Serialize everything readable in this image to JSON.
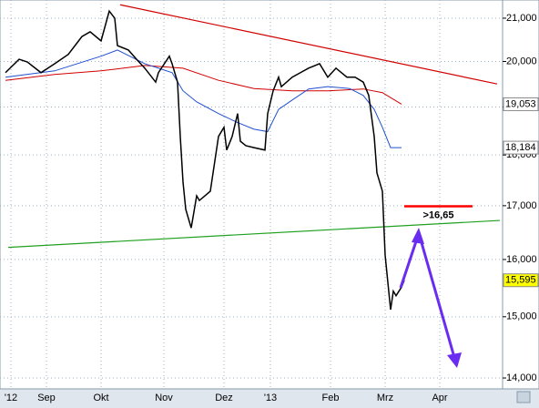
{
  "chart_data": {
    "type": "line",
    "log_scale": true,
    "grid": true,
    "xlim": [
      0,
      184
    ],
    "ylim": [
      13815,
      21435
    ],
    "xticks": [
      {
        "value": 4,
        "label": "'12"
      },
      {
        "value": 17,
        "label": "Sep"
      },
      {
        "value": 37,
        "label": "Okt"
      },
      {
        "value": 60,
        "label": "Nov"
      },
      {
        "value": 82,
        "label": "Dez"
      },
      {
        "value": 99,
        "label": "'13"
      },
      {
        "value": 121,
        "label": "Feb"
      },
      {
        "value": 141,
        "label": "Mrz"
      },
      {
        "value": 161,
        "label": "Apr"
      }
    ],
    "yticks": [
      {
        "value": 14000,
        "label": "14,000"
      },
      {
        "value": 15000,
        "label": "15,000"
      },
      {
        "value": 16000,
        "label": "16,000"
      },
      {
        "value": 17000,
        "label": "17,000"
      },
      {
        "value": 18000,
        "label": "18,000"
      },
      {
        "value": 19000,
        "label": "19,000"
      },
      {
        "value": 20000,
        "label": "20,000"
      },
      {
        "value": 21000,
        "label": "21,000"
      }
    ],
    "series": [
      {
        "color": "#d00000",
        "end_label": "19,053",
        "label_bg": "#ffffff",
        "x": [
          2,
          20,
          37,
          53,
          67,
          80,
          93,
          107,
          120,
          133,
          140,
          147
        ],
        "values": [
          19580,
          19710,
          19790,
          19910,
          19850,
          19580,
          19400,
          19350,
          19350,
          19390,
          19310,
          19060
        ]
      },
      {
        "color": "#2050d0",
        "end_label": "18,184",
        "label_bg": "#ffffff",
        "x": [
          2,
          20,
          37,
          43,
          53,
          63,
          67,
          72,
          80,
          87,
          93,
          98,
          102,
          107,
          113,
          120,
          128,
          133,
          137,
          140,
          143,
          147
        ],
        "values": [
          19650,
          19790,
          20120,
          20260,
          19950,
          19750,
          19350,
          19110,
          18860,
          18670,
          18530,
          18480,
          18950,
          19150,
          19390,
          19440,
          19400,
          19250,
          18950,
          18570,
          18150,
          18150
        ]
      },
      {
        "color": "#000000",
        "end_label": "15,595",
        "label_bg": "#ffff00",
        "x": [
          2,
          7,
          10,
          15,
          20,
          25,
          30,
          33,
          37,
          40,
          42,
          43,
          47,
          50,
          53,
          57,
          58,
          62,
          63,
          65,
          66,
          67,
          68,
          70,
          72,
          73,
          77,
          80,
          82,
          83,
          85,
          87,
          88,
          90,
          93,
          97,
          98,
          100,
          102,
          103,
          107,
          110,
          113,
          117,
          120,
          123,
          127,
          130,
          133,
          135,
          137,
          138,
          140,
          141,
          142,
          143,
          144,
          145,
          147,
          148
        ],
        "values": [
          19750,
          20050,
          19990,
          19750,
          19950,
          20160,
          20570,
          20680,
          20470,
          21170,
          21000,
          20360,
          20260,
          20050,
          19850,
          19540,
          19750,
          20120,
          19950,
          19540,
          18380,
          17460,
          16930,
          16580,
          17190,
          17100,
          17280,
          18380,
          18570,
          18100,
          18380,
          18860,
          18280,
          18190,
          18150,
          18100,
          18860,
          19350,
          19650,
          19440,
          19650,
          19750,
          19850,
          19950,
          19650,
          19850,
          19650,
          19650,
          19540,
          19250,
          18380,
          17640,
          17280,
          16080,
          15590,
          15120,
          15440,
          15360,
          15510,
          15630
        ]
      }
    ],
    "trendlines": [
      {
        "color": "#d00000",
        "x": [
          44,
          182
        ],
        "y": [
          21320,
          19500
        ]
      },
      {
        "color": "#20a020",
        "x": [
          3,
          183
        ],
        "y": [
          16220,
          16720
        ]
      }
    ],
    "target_line": {
      "color": "#ff0000",
      "x": [
        148,
        173
      ],
      "y": 16990
    },
    "annotation": ">16,65"
  }
}
